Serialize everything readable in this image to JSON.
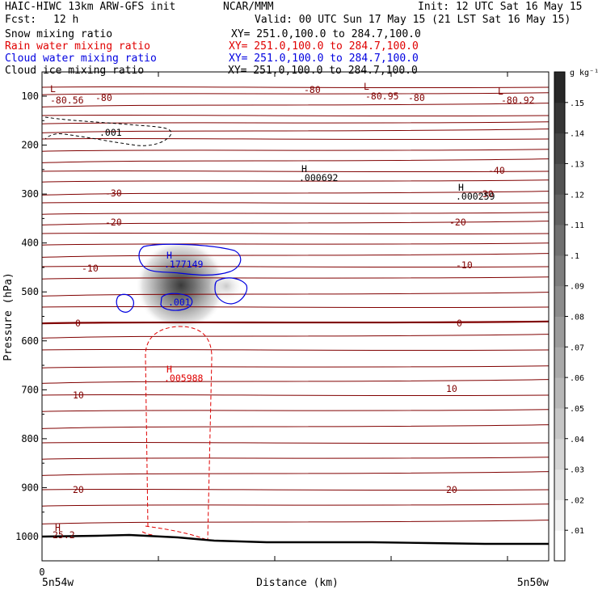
{
  "header": {
    "model": "HAIC-HIWC 13km ARW-GFS init",
    "org": "NCAR/MMM",
    "init": "Init: 12 UTC Sat 16 May 15",
    "fcst_label": "Fcst:",
    "fcst_value": "12 h",
    "valid": "Valid: 00 UTC Sun 17 May 15 (21 LST Sat 16 May 15)"
  },
  "fields": [
    {
      "name": "Snow mixing ratio",
      "xy": "XY= 251.0,100.0 to 284.7,100.0",
      "color": "#000000"
    },
    {
      "name": "Rain water mixing ratio",
      "xy": "XY= 251.0,100.0 to 284.7,100.0",
      "color": "#e00000"
    },
    {
      "name": "Cloud water mixing ratio",
      "xy": "XY= 251.0,100.0 to 284.7,100.0",
      "color": "#0000e0"
    },
    {
      "name": "Cloud ice mixing ratio",
      "xy": "XY= 251.0,100.0 to 284.7,100.0",
      "color": "#000000"
    }
  ],
  "chart_data": {
    "type": "contour",
    "xlabel": "Distance (km)",
    "ylabel": "Pressure (hPa)",
    "x_left_label": "5n54w",
    "x_right_label": "5n50w",
    "x_zero_label": "0",
    "yticks": [
      "100",
      "200",
      "300",
      "400",
      "500",
      "600",
      "700",
      "800",
      "900",
      "1000"
    ],
    "ylim": [
      1030,
      50
    ],
    "colorbar": {
      "unit": "g kg⁻¹",
      "ticks": [
        ".01",
        ".02",
        ".03",
        ".04",
        ".05",
        ".06",
        ".07",
        ".08",
        ".09",
        ".1",
        ".11",
        ".12",
        ".13",
        ".14",
        ".15"
      ],
      "max": 0.16
    },
    "temperature_labels": {
      "row1": [
        "-80.56",
        "-80",
        "-80",
        "-80.95",
        "-80",
        "-80.92"
      ],
      "row_m40": [
        "-40"
      ],
      "row_m30": [
        "-30",
        "-30"
      ],
      "row_m20": [
        "-20",
        "-20"
      ],
      "row_m10": [
        "-10",
        "-10"
      ],
      "row_0": [
        "0",
        "0"
      ],
      "row_10": [
        "10",
        "10"
      ],
      "row_20": [
        "20",
        "20"
      ],
      "surface": "25.2"
    },
    "extrema": [
      {
        "type": "L",
        "value": "",
        "color": "#800000"
      },
      {
        "type": "L",
        "value": "",
        "color": "#800000"
      },
      {
        "type": "L",
        "value": "",
        "color": "#800000"
      },
      {
        "type": "H",
        "value": ".000692",
        "color": "#000000"
      },
      {
        "type": "H",
        "value": ".000259",
        "color": "#000000"
      },
      {
        "type": "H",
        "value": ".177149",
        "color": "#0000e0"
      },
      {
        "type": "H",
        "value": ".005988",
        "color": "#e00000"
      },
      {
        "type": "H",
        "value": "",
        "color": "#800000"
      }
    ],
    "contour_labels": {
      "snow": ".001",
      "cloud_water": ".001"
    },
    "cloud_ice_peak": 0.177,
    "colors": {
      "temperature": "#800000",
      "snow": "#000000",
      "rain": "#e00000",
      "cloud_water": "#0000e0",
      "terrain": "#000000"
    }
  }
}
